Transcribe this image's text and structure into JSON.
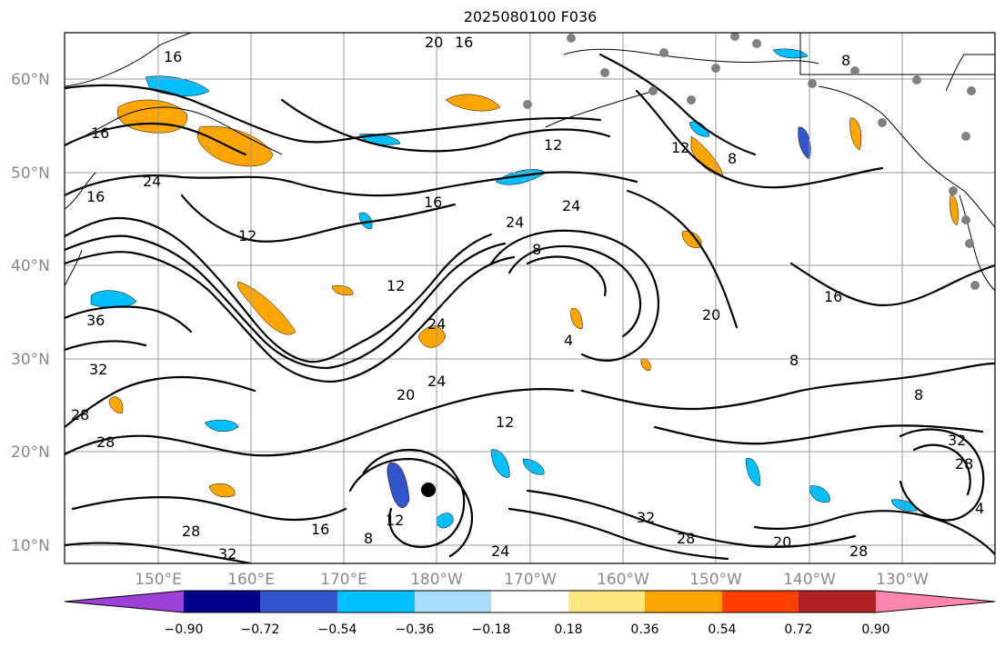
{
  "title": "2025080100 F036",
  "lat_labels": [
    "60°N",
    "50°N",
    "40°N",
    "30°N",
    "20°N",
    "10°N"
  ],
  "lon_labels": [
    "150°E",
    "160°E",
    "170°E",
    "180°W",
    "170°W",
    "160°W",
    "150°W",
    "140°W",
    "130°W"
  ],
  "colorbar": {
    "ticks": [
      "−0.90",
      "−0.72",
      "−0.54",
      "−0.36",
      "−0.18",
      "0.18",
      "0.36",
      "0.54",
      "0.72",
      "0.90"
    ],
    "colors": [
      "#9e3fd6",
      "#00008b",
      "#3355cc",
      "#00bfff",
      "#a8dcff",
      "#ffffff",
      "#ffe680",
      "#ffa500",
      "#ff4000",
      "#b22222",
      "#ff85b0"
    ]
  },
  "contour_labels": [
    "16",
    "20",
    "16",
    "16",
    "24",
    "16",
    "12",
    "16",
    "12",
    "8",
    "8",
    "12",
    "24",
    "24",
    "8",
    "12",
    "20",
    "4",
    "16",
    "36",
    "32",
    "28",
    "28",
    "20",
    "24",
    "24",
    "12",
    "8",
    "8",
    "32",
    "28",
    "32",
    "4",
    "20",
    "28",
    "28",
    "16",
    "8",
    "12",
    "24",
    "32",
    "28"
  ],
  "markers": {
    "storm_center": "black dot",
    "stations": "gray dots"
  }
}
